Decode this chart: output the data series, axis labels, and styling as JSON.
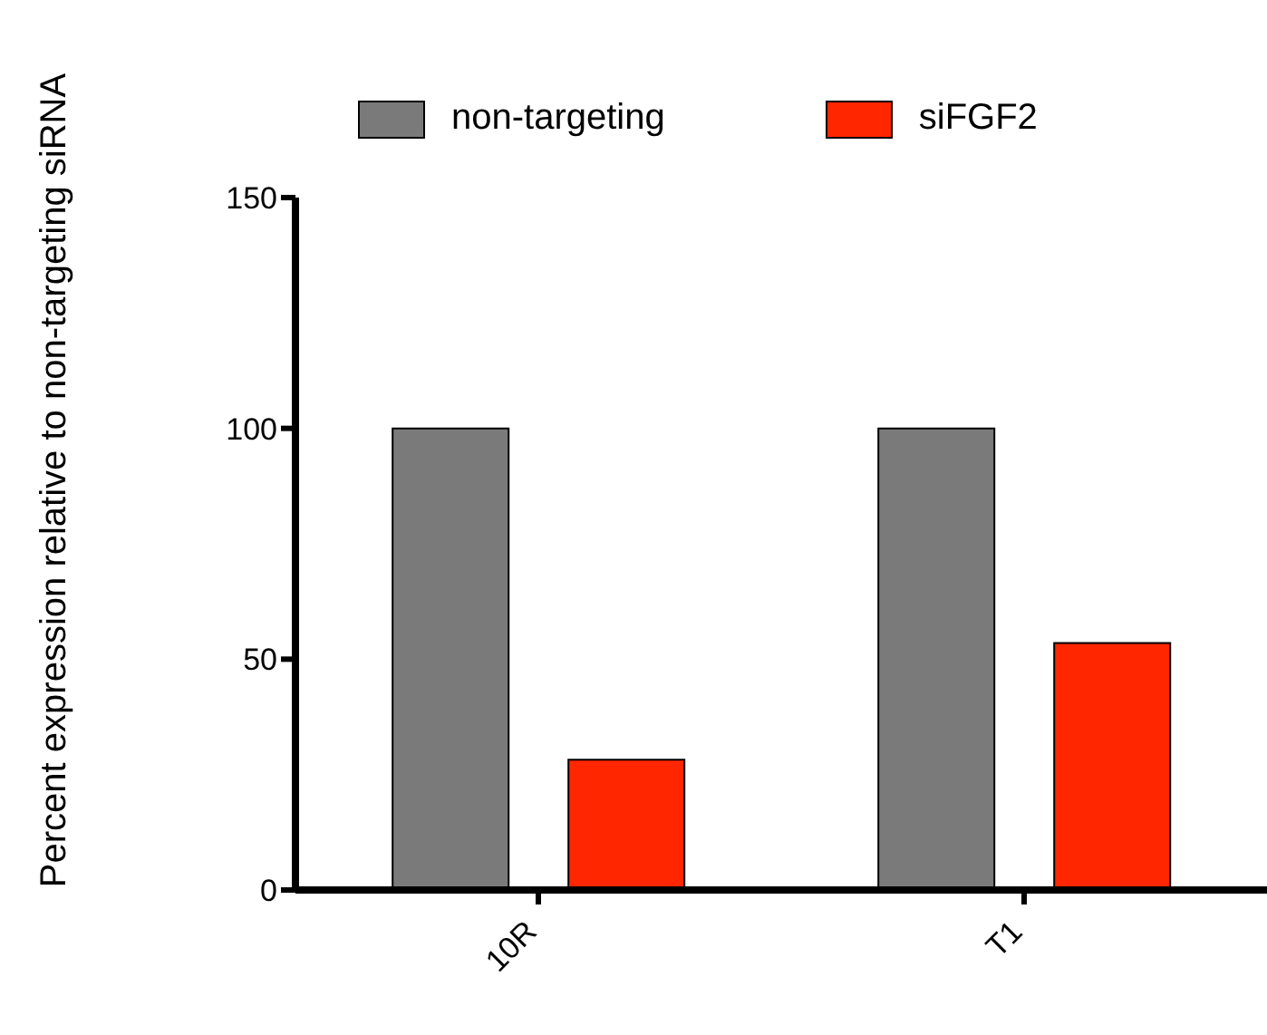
{
  "chart_data": {
    "type": "bar",
    "ylabel": "Percent expression relative to non-targeting siRNA",
    "categories": [
      "10R",
      "T1"
    ],
    "series": [
      {
        "name": "non-targeting",
        "color": "#7a7a7a",
        "values": [
          100,
          100
        ]
      },
      {
        "name": "siFGF2",
        "color": "#ff2600",
        "values": [
          28.2,
          53.5
        ]
      }
    ],
    "ylim": [
      0,
      150
    ],
    "yticks": [
      0,
      50,
      100,
      150
    ],
    "grid": false,
    "legend": "top"
  }
}
